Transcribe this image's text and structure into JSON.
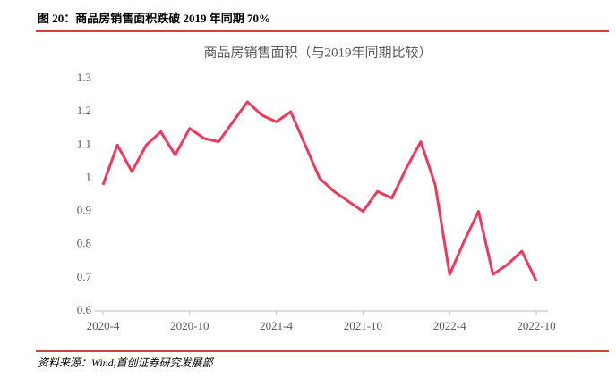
{
  "caption": "图 20：商品房销售面积跌破 2019 年同期 70%",
  "source": "资料来源：Wind,首创证券研究发展部",
  "chart_data": {
    "type": "line",
    "title": "商品房销售面积（与2019年同期比较）",
    "categories": [
      "2020-4",
      null,
      null,
      null,
      null,
      null,
      "2020-10",
      null,
      null,
      null,
      null,
      null,
      "2021-4",
      null,
      null,
      null,
      null,
      null,
      "2021-10",
      null,
      null,
      null,
      null,
      null,
      "2022-4",
      null,
      null,
      null,
      null,
      null,
      "2022-10"
    ],
    "series": [
      {
        "name": "商品房销售面积",
        "color": "#f2385a",
        "values": [
          0.98,
          1.1,
          1.02,
          1.1,
          1.14,
          1.07,
          1.15,
          1.12,
          1.11,
          1.17,
          1.23,
          1.19,
          1.17,
          1.2,
          1.1,
          1.0,
          0.96,
          0.93,
          0.9,
          0.96,
          0.94,
          1.03,
          1.11,
          0.98,
          0.71,
          0.81,
          0.9,
          0.71,
          0.74,
          0.78,
          0.69
        ]
      }
    ],
    "ylim": [
      0.6,
      1.3
    ],
    "yticks": [
      0.6,
      0.7,
      0.8,
      0.9,
      1,
      1.1,
      1.2,
      1.3
    ],
    "grid": false
  }
}
